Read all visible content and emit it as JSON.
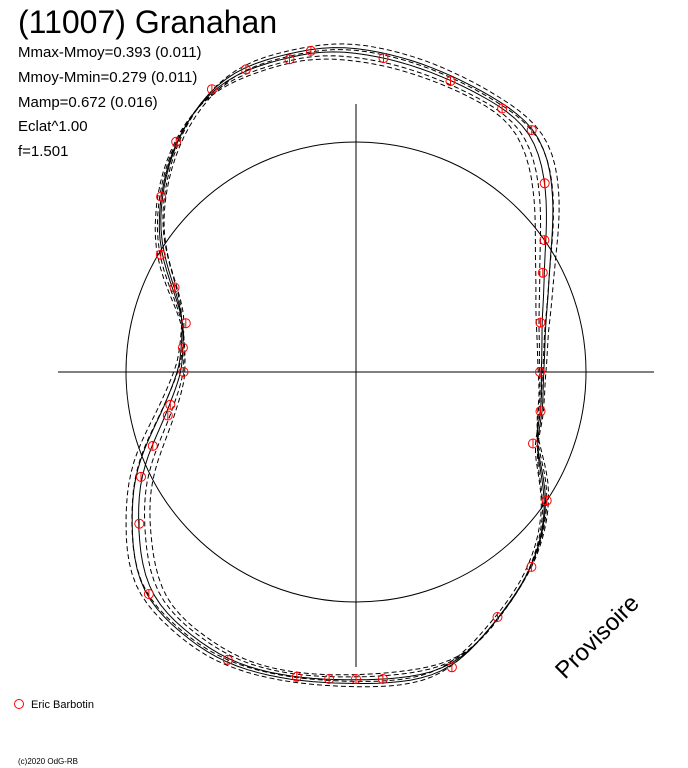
{
  "chart_data": {
    "type": "scatter",
    "title": "(11007) Granahan",
    "stats": [
      "Mmax-Mmoy=0.393 (0.011)",
      "Mmoy-Mmin=0.279 (0.011)",
      "Mamp=0.672 (0.016)",
      "Eclat^1.00",
      "f=1.501"
    ],
    "legend": [
      {
        "label": "Eric Barbotin",
        "color": "#ff0000",
        "marker": "open-circle"
      }
    ],
    "watermark": "Provisoire",
    "copyright": "(c)2020 OdG-RB",
    "grid": false,
    "axes": "crosshair through origin",
    "reference_circle_radius": 1.0,
    "observations_polar": [
      {
        "angle_deg": 270,
        "r": 1.335
      },
      {
        "angle_deg": 265,
        "r": 1.34
      },
      {
        "angle_deg": 259,
        "r": 1.35
      },
      {
        "angle_deg": 246,
        "r": 1.37
      },
      {
        "angle_deg": 227,
        "r": 1.32
      },
      {
        "angle_deg": 215,
        "r": 1.15
      },
      {
        "angle_deg": 206,
        "r": 1.04
      },
      {
        "angle_deg": 200,
        "r": 0.94
      },
      {
        "angle_deg": 193,
        "r": 0.84
      },
      {
        "angle_deg": 190,
        "r": 0.82
      },
      {
        "angle_deg": 180,
        "r": 0.75
      },
      {
        "angle_deg": 172,
        "r": 0.76
      },
      {
        "angle_deg": 164,
        "r": 0.77
      },
      {
        "angle_deg": 155,
        "r": 0.87
      },
      {
        "angle_deg": 149,
        "r": 0.99
      },
      {
        "angle_deg": 138,
        "r": 1.14
      },
      {
        "angle_deg": 128,
        "r": 1.27
      },
      {
        "angle_deg": 117,
        "r": 1.38
      },
      {
        "angle_deg": 110,
        "r": 1.4
      },
      {
        "angle_deg": 102,
        "r": 1.39
      },
      {
        "angle_deg": 98,
        "r": 1.41
      },
      {
        "angle_deg": 85,
        "r": 1.37
      },
      {
        "angle_deg": 72,
        "r": 1.33
      },
      {
        "angle_deg": 61,
        "r": 1.31
      },
      {
        "angle_deg": 54,
        "r": 1.3
      },
      {
        "angle_deg": 45,
        "r": 1.16
      },
      {
        "angle_deg": 35,
        "r": 1.0
      },
      {
        "angle_deg": 28,
        "r": 0.92
      },
      {
        "angle_deg": 15,
        "r": 0.83
      },
      {
        "angle_deg": 0,
        "r": 0.8
      },
      {
        "angle_deg": -12,
        "r": 0.82
      },
      {
        "angle_deg": -22,
        "r": 0.83
      },
      {
        "angle_deg": -34,
        "r": 1.0
      },
      {
        "angle_deg": -48,
        "r": 1.14
      },
      {
        "angle_deg": -60,
        "r": 1.23
      },
      {
        "angle_deg": -72,
        "r": 1.35
      },
      {
        "angle_deg": -85,
        "r": 1.34
      }
    ],
    "model_curves": [
      {
        "style": "solid",
        "scale": 1.0,
        "phase_deg": 0
      },
      {
        "style": "solid",
        "scale": 1.012,
        "phase_deg": 1.5
      },
      {
        "style": "dashed",
        "scale": 0.99,
        "phase_deg": -1.5
      },
      {
        "style": "dashed",
        "scale": 1.022,
        "phase_deg": 3
      },
      {
        "style": "dashed",
        "scale": 0.982,
        "phase_deg": -3
      },
      {
        "style": "dashed",
        "scale": 1.005,
        "phase_deg": 2.2
      }
    ]
  }
}
